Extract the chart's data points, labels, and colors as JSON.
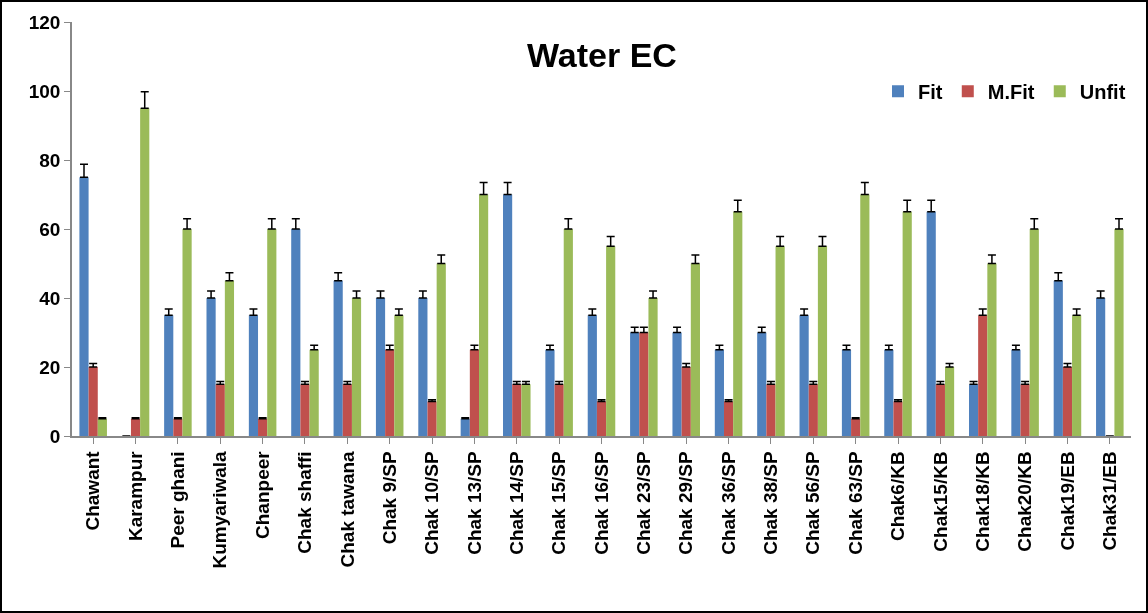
{
  "chart_data": {
    "type": "bar",
    "title": "Water EC",
    "categories": [
      "Chawant",
      "Karampur",
      "Peer ghani",
      "Kumyariwala",
      "Chanpeer",
      "Chak shaffi",
      "Chak tawana",
      "Chak 9/SP",
      "Chak 10/SP",
      "Chak 13/SP",
      "Chak 14/SP",
      "Chak 15/SP",
      "Chak 16/SP",
      "Chak 23/SP",
      "Chak 29/SP",
      "Chak 36/SP",
      "Chak 38/SP",
      "Chak 56/SP",
      "Chak 63/SP",
      "Chak6/KB",
      "Chak15/KB",
      "Chak18/KB",
      "Chak20/KB",
      "Chak19/EB",
      "Chak31/EB"
    ],
    "series": [
      {
        "name": "Fit",
        "color": "#4f81bd",
        "values": [
          75,
          0,
          35,
          40,
          35,
          60,
          45,
          40,
          40,
          5,
          70,
          25,
          35,
          30,
          30,
          25,
          30,
          35,
          25,
          25,
          65,
          15,
          25,
          45,
          40
        ],
        "errors": [
          [
            75,
            78.8
          ],
          null,
          [
            35,
            36.8
          ],
          [
            40,
            42
          ],
          [
            35,
            36.8
          ],
          [
            60,
            63
          ],
          [
            45,
            47.3
          ],
          [
            40,
            42
          ],
          [
            40,
            42
          ],
          [
            5,
            5.3
          ],
          [
            70,
            73.5
          ],
          [
            25,
            26.3
          ],
          [
            35,
            36.8
          ],
          [
            30,
            31.5
          ],
          [
            30,
            31.5
          ],
          [
            25,
            26.3
          ],
          [
            30,
            31.5
          ],
          [
            35,
            36.8
          ],
          [
            25,
            26.3
          ],
          [
            25,
            26.3
          ],
          [
            65,
            68.3
          ],
          [
            15,
            15.8
          ],
          [
            25,
            26.3
          ],
          [
            45,
            47.3
          ],
          [
            40,
            42
          ]
        ]
      },
      {
        "name": "M.Fit",
        "color": "#c0504d",
        "values": [
          20,
          5,
          5,
          15,
          5,
          15,
          15,
          25,
          10,
          25,
          15,
          15,
          10,
          30,
          20,
          10,
          15,
          15,
          5,
          10,
          15,
          35,
          15,
          20,
          0
        ],
        "errors": [
          [
            20,
            21
          ],
          [
            5,
            5.3
          ],
          [
            5,
            5.3
          ],
          [
            15,
            15.8
          ],
          [
            5,
            5.3
          ],
          [
            15,
            15.8
          ],
          [
            15,
            15.8
          ],
          [
            25,
            26.3
          ],
          [
            10,
            10.5
          ],
          [
            25,
            26.3
          ],
          [
            15,
            15.8
          ],
          [
            15,
            15.8
          ],
          [
            10,
            10.5
          ],
          [
            30,
            31.5
          ],
          [
            20,
            21
          ],
          [
            10,
            10.5
          ],
          [
            15,
            15.8
          ],
          [
            15,
            15.8
          ],
          [
            5,
            5.3
          ],
          [
            10,
            10.5
          ],
          [
            15,
            15.8
          ],
          [
            35,
            36.8
          ],
          [
            15,
            15.8
          ],
          [
            20,
            21
          ],
          null
        ]
      },
      {
        "name": "Unfit",
        "color": "#9bbb59",
        "values": [
          5,
          95,
          60,
          45,
          60,
          25,
          40,
          35,
          50,
          70,
          15,
          60,
          55,
          40,
          50,
          65,
          55,
          55,
          70,
          65,
          20,
          50,
          60,
          35,
          60
        ],
        "errors": [
          [
            5,
            5.3
          ],
          [
            95,
            99.8
          ],
          [
            60,
            63
          ],
          [
            45,
            47.3
          ],
          [
            60,
            63
          ],
          [
            25,
            26.3
          ],
          [
            40,
            42
          ],
          [
            35,
            36.8
          ],
          [
            50,
            52.5
          ],
          [
            70,
            73.5
          ],
          [
            15,
            15.8
          ],
          [
            60,
            63
          ],
          [
            55,
            57.8
          ],
          [
            40,
            42
          ],
          [
            50,
            52.5
          ],
          [
            65,
            68.3
          ],
          [
            55,
            57.8
          ],
          [
            55,
            57.8
          ],
          [
            70,
            73.5
          ],
          [
            65,
            68.3
          ],
          [
            20,
            21
          ],
          [
            50,
            52.5
          ],
          [
            60,
            63
          ],
          [
            35,
            36.8
          ],
          [
            60,
            63
          ]
        ]
      }
    ],
    "ylim": [
      0,
      120
    ],
    "yticks": [
      0,
      20,
      40,
      60,
      80,
      100,
      120
    ],
    "grid": false,
    "legend": "top right"
  }
}
